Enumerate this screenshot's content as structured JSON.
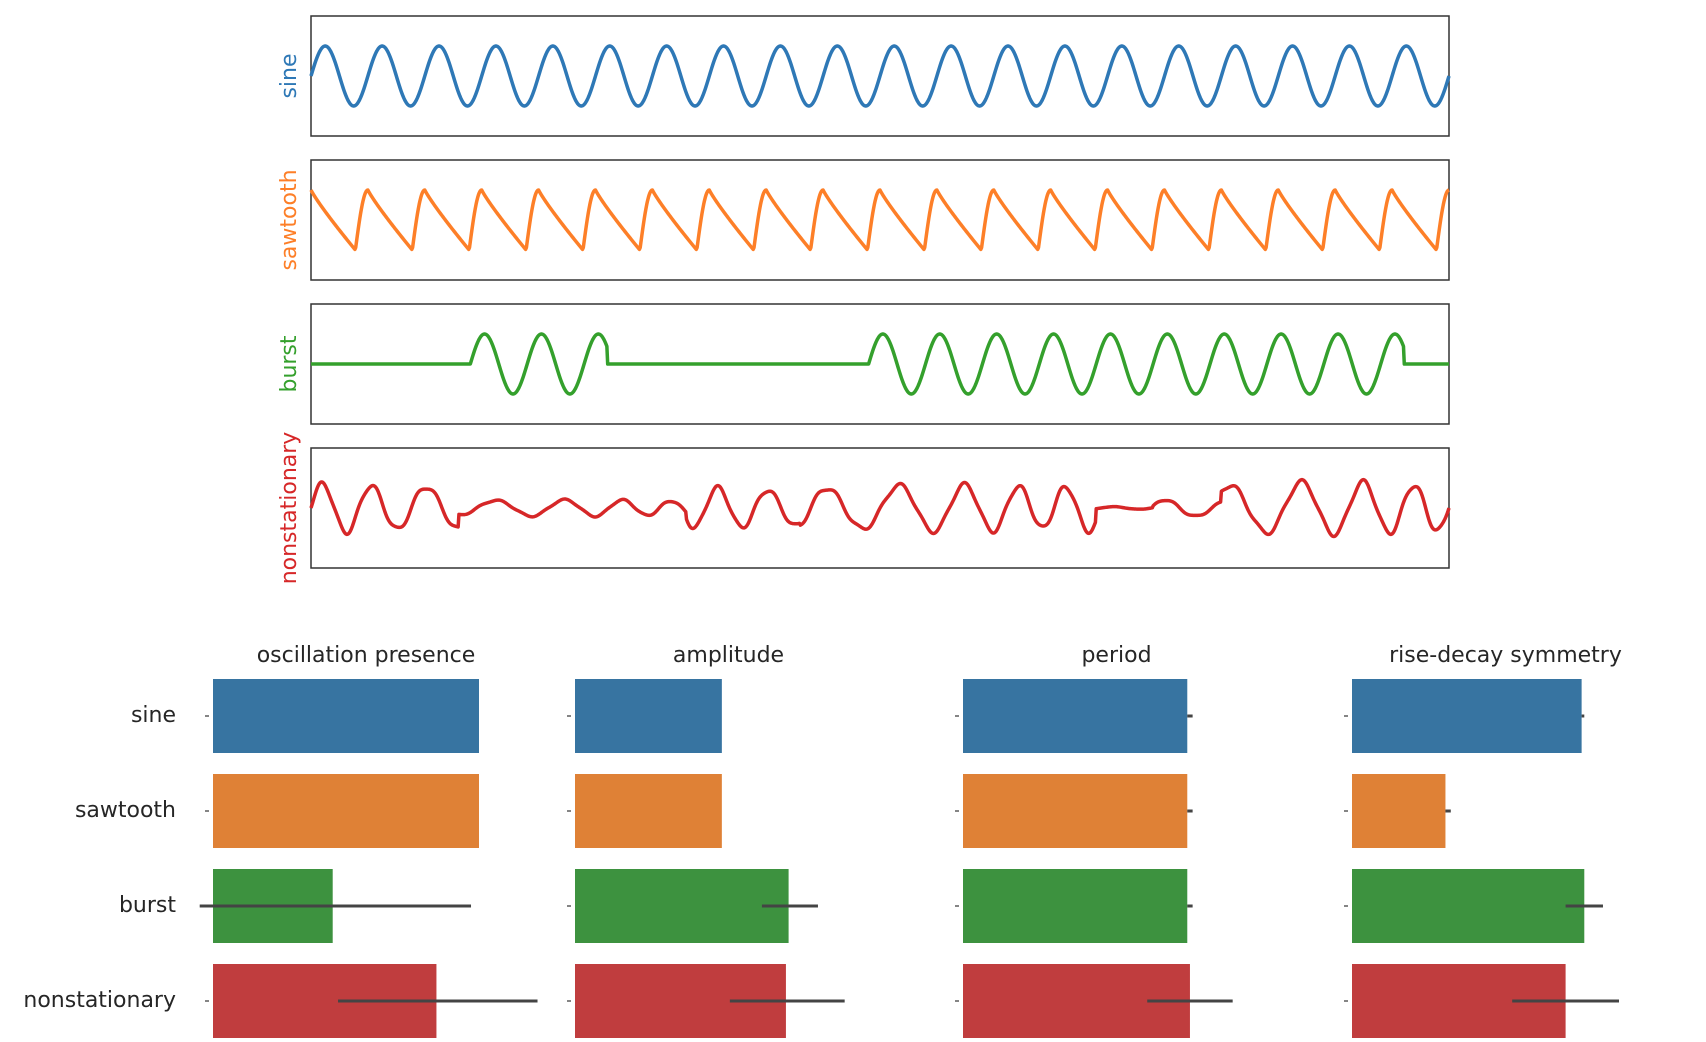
{
  "chart_data": [
    {
      "type": "line",
      "series": [
        {
          "name": "sine",
          "color": "#2e78b6",
          "shape": "sine",
          "cycles": 20,
          "amplitude": 1.0
        },
        {
          "name": "sawtooth",
          "color": "#fd7f28",
          "shape": "sawtooth",
          "cycles": 20,
          "amplitude": 1.0
        },
        {
          "name": "burst",
          "color": "#34a02c",
          "shape": "burst",
          "cycles": 20,
          "amplitude": 1.0,
          "bursts": [
            [
              0.14,
              0.26
            ],
            [
              0.49,
              0.96
            ]
          ]
        },
        {
          "name": "nonstationary",
          "color": "#d62728",
          "shape": "nonstationary",
          "amplitude": 1.0
        }
      ],
      "xlabel": "",
      "ylabel": "",
      "grid": false,
      "xticks": false,
      "yticks": false
    },
    {
      "type": "bar",
      "orientation": "horizontal",
      "categories": [
        "sine",
        "sawtooth",
        "burst",
        "nonstationary"
      ],
      "colors": [
        "#3774a1",
        "#df8136",
        "#3d923f",
        "#c03d3e"
      ],
      "panels": [
        {
          "title": "oscillation presence",
          "xlim": [
            0,
            1.0
          ],
          "values": [
            1.0,
            1.0,
            0.45,
            0.84
          ],
          "errors": [
            null,
            null,
            [
              -0.05,
              0.97
            ],
            [
              0.47,
              1.22
            ]
          ]
        },
        {
          "title": "amplitude",
          "xlim": [
            0,
            1.0
          ],
          "values": [
            0.55,
            0.55,
            0.8,
            0.79
          ],
          "errors": [
            null,
            null,
            [
              0.7,
              0.91
            ],
            [
              0.58,
              1.01
            ]
          ]
        },
        {
          "title": "period",
          "xlim": [
            0,
            1.0
          ],
          "values": [
            0.84,
            0.84,
            0.84,
            0.85
          ],
          "errors": [
            [
              0.84,
              0.86
            ],
            [
              0.84,
              0.86
            ],
            [
              0.84,
              0.86
            ],
            [
              0.69,
              1.01
            ]
          ]
        },
        {
          "title": "rise-decay symmetry",
          "xlim": [
            0,
            1.0
          ],
          "values": [
            0.86,
            0.35,
            0.87,
            0.8
          ],
          "errors": [
            [
              0.86,
              0.87
            ],
            [
              0.35,
              0.37
            ],
            [
              0.8,
              0.94
            ],
            [
              0.6,
              1.0
            ]
          ]
        }
      ],
      "grid": false,
      "legend": "none"
    }
  ]
}
